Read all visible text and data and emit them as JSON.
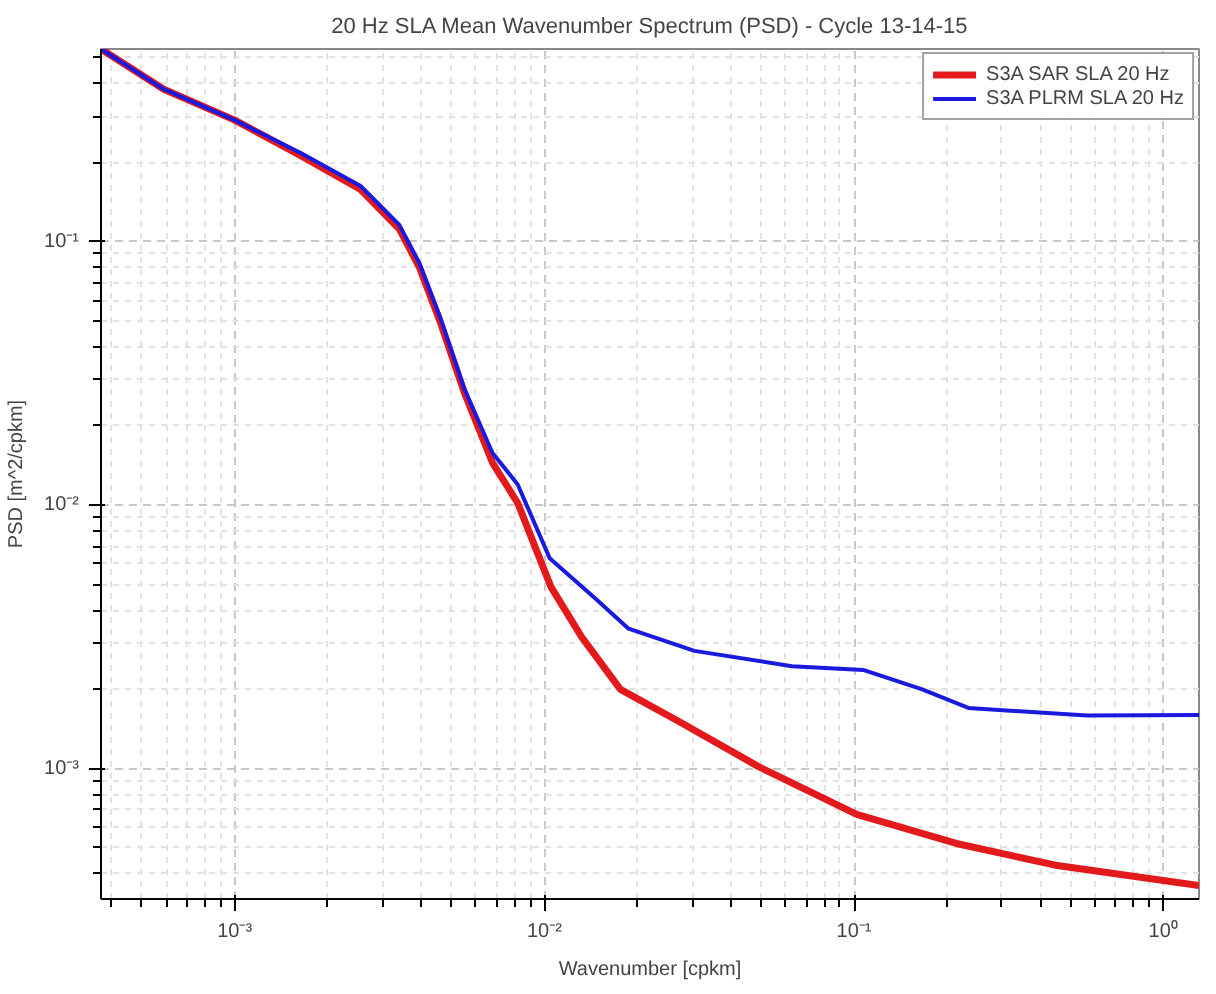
{
  "chart_data": {
    "type": "line",
    "title": "20 Hz SLA Mean Wavenumber Spectrum (PSD) - Cycle 13-14-15",
    "xlabel": "Wavenumber [cpkm]",
    "ylabel": "PSD [m^2/cpkm]",
    "log": "xy",
    "grid": true,
    "legend": "top right",
    "line_style": "solid",
    "xlim": [
      0.00037,
      1.3
    ],
    "ylim": [
      0.00032,
      0.54
    ],
    "xticks": [
      {
        "value": 0.001,
        "label": "10⁻³"
      },
      {
        "value": 0.01,
        "label": "10⁻²"
      },
      {
        "value": 0.1,
        "label": "10⁻¹"
      },
      {
        "value": 1,
        "label": "10⁰"
      }
    ],
    "yticks": [
      {
        "value": 0.001,
        "label": "10⁻³"
      },
      {
        "value": 0.01,
        "label": "10⁻²"
      },
      {
        "value": 0.1,
        "label": "10⁻¹"
      }
    ],
    "series": [
      {
        "name": "S3A SAR SLA 20 Hz",
        "color": "#e31a1c",
        "x": [
          0.00037,
          0.00059,
          0.001,
          0.00164,
          0.00255,
          0.0034,
          0.00395,
          0.0046,
          0.0055,
          0.0068,
          0.0082,
          0.0105,
          0.0132,
          0.0176,
          0.0272,
          0.049,
          0.102,
          0.214,
          0.447,
          1.3
        ],
        "values": [
          0.54,
          0.38,
          0.29,
          0.212,
          0.158,
          0.112,
          0.08,
          0.05,
          0.027,
          0.0145,
          0.0102,
          0.0049,
          0.00316,
          0.002,
          0.00151,
          0.00102,
          0.00067,
          0.00052,
          0.00043,
          0.00036
        ]
      },
      {
        "name": "S3A PLRM SLA 20 Hz",
        "color": "#1a1adf",
        "x": [
          0.00037,
          0.00059,
          0.001,
          0.00164,
          0.00255,
          0.0034,
          0.00395,
          0.0046,
          0.0055,
          0.0068,
          0.0082,
          0.0104,
          0.0147,
          0.0187,
          0.0305,
          0.063,
          0.107,
          0.166,
          0.234,
          0.565,
          1.3
        ],
        "values": [
          0.54,
          0.38,
          0.29,
          0.217,
          0.163,
          0.116,
          0.083,
          0.052,
          0.0279,
          0.0158,
          0.012,
          0.0063,
          0.0044,
          0.0034,
          0.0028,
          0.00245,
          0.00237,
          0.002,
          0.0017,
          0.00159,
          0.0016
        ]
      }
    ]
  }
}
